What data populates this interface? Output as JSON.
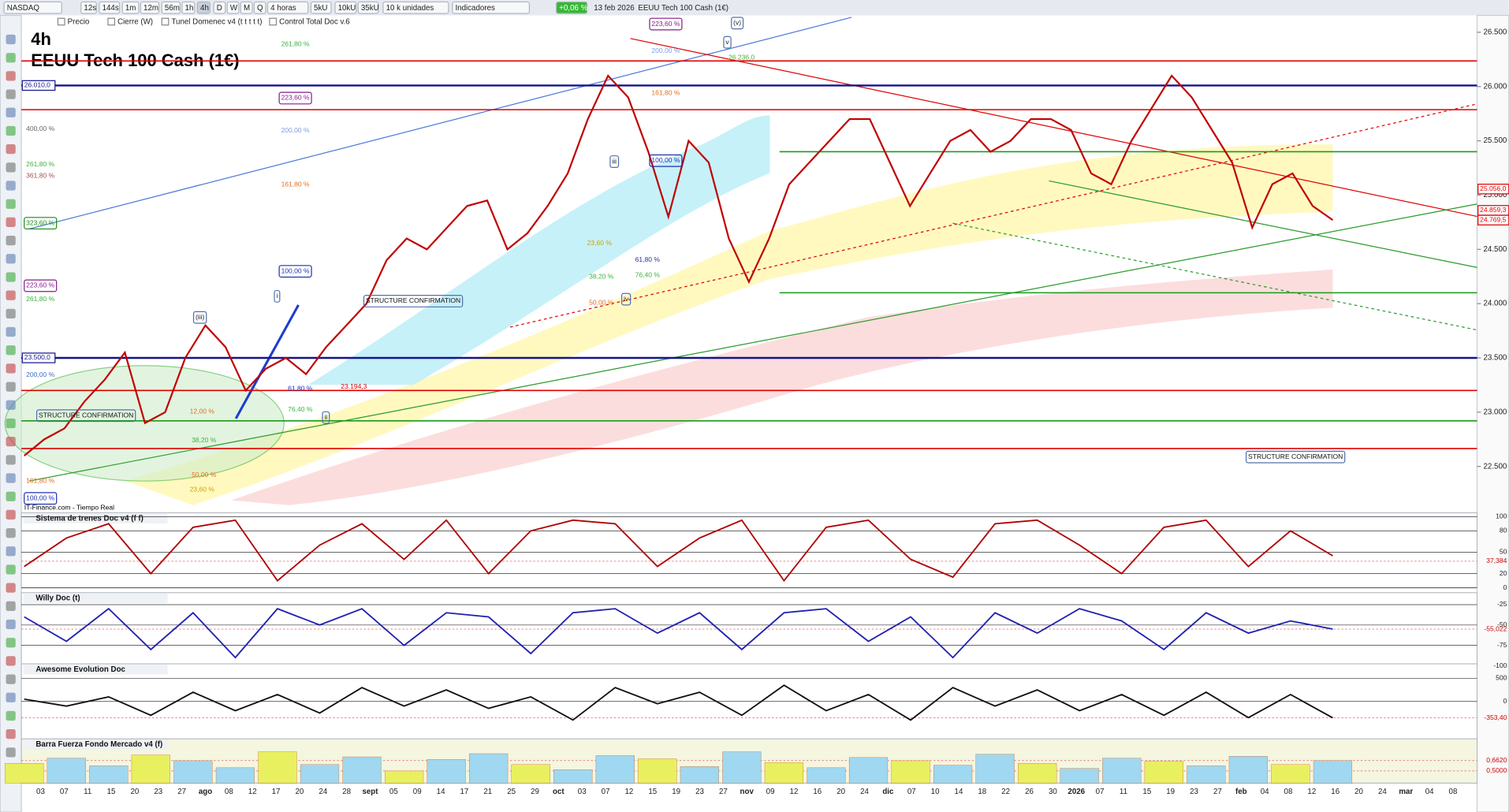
{
  "toolbar": {
    "items": [
      "NASDAQ",
      "12s",
      "144s",
      "1m",
      "12m",
      "56m",
      "1h",
      "4h",
      "D",
      "W",
      "M",
      "Q",
      "4 horas",
      "5kU",
      "10kU",
      "35kU",
      "10 k unidades",
      "Indicadores",
      "+0,06 %",
      "13 feb 2026",
      "EEUU Tech 100 Cash (1€)"
    ],
    "legend": [
      "Precio",
      "Cierre (W)",
      "Tunel Domenec v4 (t t t t t)",
      "Control Total Doc v.6"
    ]
  },
  "chart_data": {
    "type": "line",
    "timeframe": "4h",
    "title": "EEUU Tech 100 Cash (1€)",
    "source": "IT-Finance.com - Tiempo Real",
    "ylim": [
      22144,
      26691
    ],
    "yticks": [
      {
        "value": 26500,
        "label": "26.500"
      },
      {
        "value": 26000,
        "label": "26.000"
      },
      {
        "value": 25500,
        "label": "25.500"
      },
      {
        "value": 25000,
        "label": "25.000"
      },
      {
        "value": 24500,
        "label": "24.500"
      },
      {
        "value": 24000,
        "label": "24.000"
      },
      {
        "value": 23500,
        "label": "23.500"
      },
      {
        "value": 23000,
        "label": "23.000"
      },
      {
        "value": 22500,
        "label": "22.500"
      }
    ],
    "levels": [
      {
        "value": 26010,
        "label": "26.010,0",
        "color": "#14148c"
      },
      {
        "value": 23500,
        "label": "23.500,0",
        "color": "#14148c"
      }
    ],
    "lines": [
      {
        "value": 26236,
        "color": "#e00000"
      },
      {
        "value": 25787,
        "color": "#e00000"
      },
      {
        "value": 25400,
        "color": "#1a9a1a"
      },
      {
        "value": 24100,
        "color": "#1a9a1a"
      },
      {
        "value": 23200,
        "color": "#e00000"
      },
      {
        "value": 22920,
        "color": "#1a9a1a"
      },
      {
        "value": 22665,
        "color": "#e00000"
      }
    ],
    "current": [
      {
        "value": 25056,
        "label": "25.056,0",
        "color": "#e00000"
      },
      {
        "value": 24859.3,
        "label": "24.859,3",
        "color": "#e00000"
      },
      {
        "value": 24769.5,
        "label": "24.769,5",
        "color": "#e00000"
      }
    ],
    "series": [
      {
        "name": "Precio",
        "color": "#c00000",
        "values": [
          22600,
          22750,
          22850,
          23100,
          23300,
          23550,
          22900,
          23000,
          23500,
          23800,
          23600,
          23200,
          23400,
          23500,
          23350,
          23600,
          23800,
          24000,
          24400,
          24600,
          24500,
          24700,
          24900,
          24950,
          24500,
          24650,
          24900,
          25200,
          25700,
          26100,
          25900,
          25400,
          24800,
          25500,
          25300,
          24600,
          24200,
          24600,
          25100,
          25300,
          25500,
          25700,
          25700,
          25300,
          24900,
          25200,
          25500,
          25600,
          25400,
          25500,
          25700,
          25700,
          25600,
          25200,
          25100,
          25500,
          25800,
          26100,
          25900,
          25600,
          25300,
          24700,
          25100,
          25200,
          24900,
          24770
        ]
      }
    ],
    "x_labels": [
      "03",
      "07",
      "11",
      "15",
      "20",
      "23",
      "27",
      "ago",
      "08",
      "12",
      "17",
      "20",
      "24",
      "28",
      "sept",
      "05",
      "09",
      "14",
      "17",
      "21",
      "25",
      "29",
      "oct",
      "03",
      "07",
      "12",
      "15",
      "19",
      "23",
      "27",
      "nov",
      "09",
      "12",
      "16",
      "20",
      "24",
      "dic",
      "07",
      "10",
      "14",
      "18",
      "22",
      "26",
      "30",
      "2026",
      "07",
      "11",
      "15",
      "19",
      "23",
      "27",
      "feb",
      "04",
      "08",
      "12",
      "16",
      "20",
      "24",
      "mar",
      "04",
      "08"
    ],
    "annotations": [
      "261,80 %",
      "223,60 %",
      "200,00 %",
      "161,80 %",
      "100,00 %",
      "261,80 %",
      "361,80 %",
      "400,00 %",
      "323,60 %",
      "223,60 %",
      "261,80 %",
      "200,00 %",
      "161,80 %",
      "100,00 %",
      "223,60 %",
      "200,00 %",
      "161,80 %",
      "100,00 %",
      "61,80 %",
      "76,40 %",
      "23,60 %",
      "38,20 %",
      "50,00 %",
      "61,80 %",
      "76,40 %",
      "12,00 %",
      "38,20 %",
      "50,00 %",
      "23,60 %",
      "(v)",
      "v",
      "iii",
      "(iii)",
      "iv",
      "ii",
      "i",
      "26.236,0",
      "23.194,3",
      "STRUCTURE CONFIRMATION",
      "STRUCTURE CONFIRMATION",
      "STRUCTURE CONFIRMATION"
    ]
  },
  "panels": [
    {
      "title": "Sistema de trenes Doc v4 (f f)",
      "ylim": [
        0,
        100
      ],
      "yticks": [
        100,
        80,
        50,
        {
          "value": 37.384,
          "label": "37,384"
        },
        20,
        0
      ],
      "color": "#b00000",
      "values": [
        30,
        70,
        90,
        20,
        85,
        95,
        10,
        60,
        90,
        40,
        95,
        20,
        80,
        95,
        90,
        30,
        70,
        95,
        10,
        85,
        95,
        40,
        15,
        90,
        95,
        60,
        20,
        85,
        95,
        30,
        80,
        45
      ]
    },
    {
      "title": "Willy Doc (t)",
      "ylim": [
        -100,
        -15
      ],
      "yticks": [
        -25,
        -50,
        {
          "value": -55.022,
          "label": "-55,022"
        },
        -75,
        -100
      ],
      "color": "#2020b0",
      "values": [
        -40,
        -70,
        -30,
        -80,
        -35,
        -90,
        -30,
        -50,
        -30,
        -75,
        -35,
        -40,
        -85,
        -35,
        -30,
        -60,
        -35,
        -80,
        -35,
        -30,
        -70,
        -40,
        -90,
        -35,
        -60,
        -30,
        -45,
        -80,
        -35,
        -60,
        -45,
        -55
      ]
    },
    {
      "title": "Awesome Evolution Doc",
      "ylim": [
        -850,
        730
      ],
      "yticks": [
        500,
        0,
        {
          "value": -353.4,
          "label": "-353,40"
        }
      ],
      "color": "#101010",
      "values": [
        50,
        -100,
        100,
        -300,
        200,
        -200,
        150,
        -250,
        300,
        -100,
        250,
        -150,
        100,
        -400,
        300,
        -50,
        200,
        -300,
        350,
        -200,
        150,
        -400,
        300,
        -100,
        250,
        -200,
        150,
        -300,
        200,
        -350,
        150,
        -353
      ]
    },
    {
      "title": "Barra Fuerza Fondo Mercado v4 (f)",
      "ylim": [
        0.309,
        0.941
      ],
      "yticks": [
        {
          "value": 0.662,
          "label": "0,6620"
        },
        {
          "value": 0.5,
          "label": "0,5000"
        }
      ],
      "color": "#d06020",
      "values": [
        0.62,
        0.7,
        0.58,
        0.75,
        0.66,
        0.55,
        0.8,
        0.6,
        0.72,
        0.5,
        0.68,
        0.77,
        0.6,
        0.52,
        0.74,
        0.69,
        0.57,
        0.8,
        0.63,
        0.55,
        0.71,
        0.66,
        0.59,
        0.76,
        0.62,
        0.54,
        0.7,
        0.65,
        0.58,
        0.73,
        0.6,
        0.662
      ]
    }
  ]
}
